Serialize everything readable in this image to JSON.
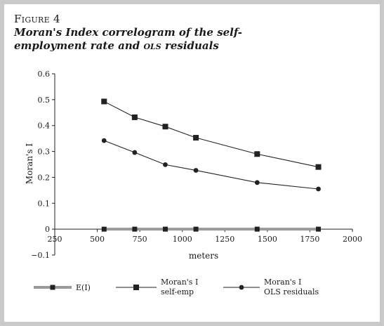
{
  "figure": {
    "label": "Figure 4",
    "title_main": "Moran's Index correlogram of the self-employment rate and ",
    "title_ols": "ols",
    "title_end": " residuals"
  },
  "chart_data": {
    "type": "line",
    "xlabel": "meters",
    "ylabel": "Moran's I",
    "xlim": [
      250,
      2000
    ],
    "ylim": [
      -0.1,
      0.6
    ],
    "x_ticks": [
      "250",
      "500",
      "750",
      "1000",
      "1250",
      "1500",
      "1750",
      "2000"
    ],
    "y_ticks": [
      "−0.1",
      "0",
      "0.1",
      "0.2",
      "0.3",
      "0.4",
      "0.5",
      "0.6"
    ],
    "x": [
      540,
      720,
      900,
      1080,
      1440,
      1800
    ],
    "series": [
      {
        "name": "E(I)",
        "values": [
          0,
          0,
          0,
          0,
          0,
          0
        ],
        "color": "#9a9a9a",
        "marker": "square"
      },
      {
        "name": "Moran's I self-emp",
        "values": [
          0.493,
          0.432,
          0.396,
          0.353,
          0.29,
          0.24
        ],
        "color": "#222222",
        "marker": "square"
      },
      {
        "name": "Moran's I OLS residuals",
        "values": [
          0.342,
          0.296,
          0.249,
          0.227,
          0.18,
          0.155
        ],
        "color": "#222222",
        "marker": "circle"
      }
    ],
    "legend": {
      "placement": "bottom",
      "items": [
        {
          "line1": "E(I)",
          "line2": ""
        },
        {
          "line1": "Moran's I",
          "line2": "self-emp"
        },
        {
          "line1": "Moran's I",
          "line2": "OLS residuals"
        }
      ]
    },
    "grid": false
  }
}
